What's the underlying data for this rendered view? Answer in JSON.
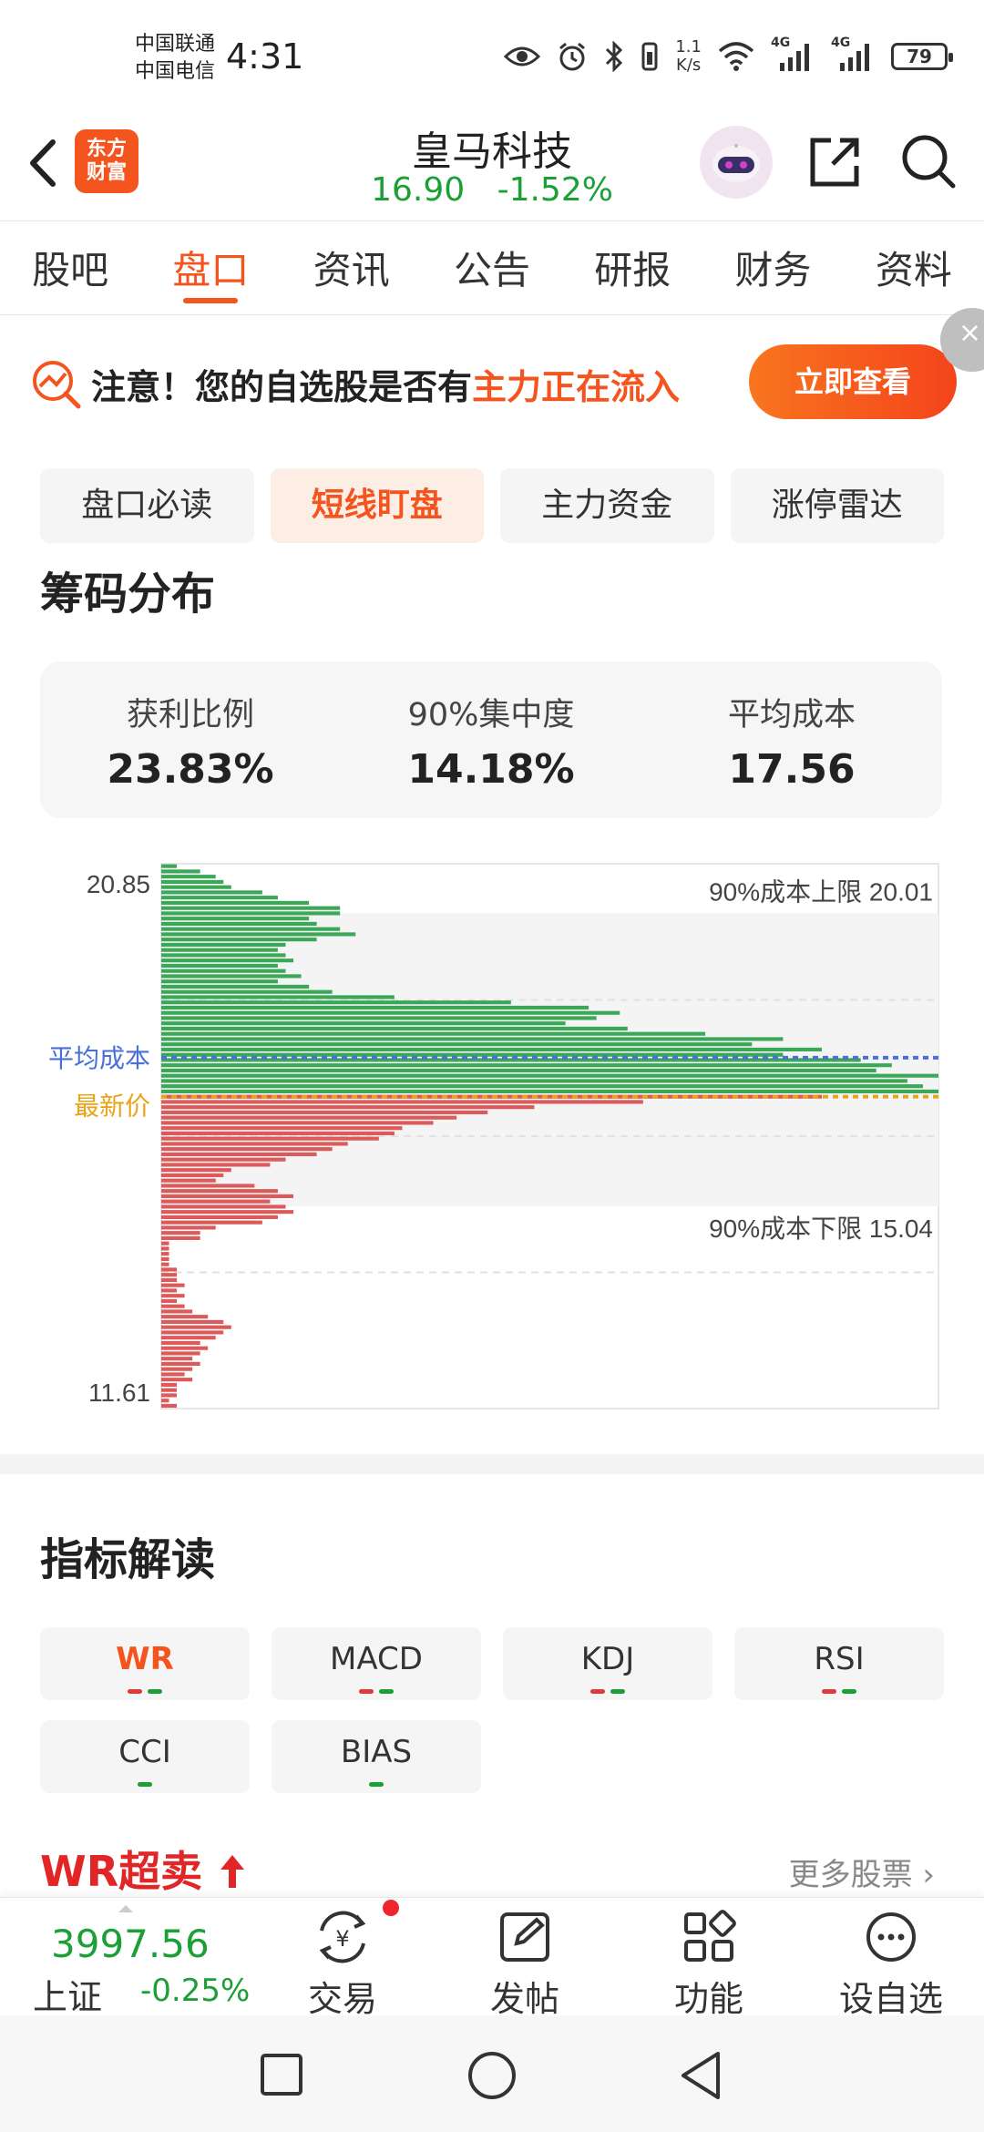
{
  "status_bar": {
    "carrier_1": "中国联通",
    "carrier_2": "中国电信",
    "time": "4:31",
    "net_speed_value": "1.1",
    "net_speed_unit": "K/s",
    "signal_1": "4G",
    "signal_2": "4G",
    "battery": "79",
    "icons": [
      "eye-icon",
      "alarm-icon",
      "bluetooth-icon",
      "vibrate-icon",
      "wifi-icon",
      "signal-icon",
      "battery-icon"
    ]
  },
  "header": {
    "logo_line1": "东方",
    "logo_line2": "财富",
    "stock_name": "皇马科技",
    "price": "16.90",
    "change": "-1.52%",
    "accent": "#f4541d",
    "down_color": "#1ba035"
  },
  "tabs": [
    {
      "label": "股吧",
      "active": false
    },
    {
      "label": "盘口",
      "active": true
    },
    {
      "label": "资讯",
      "active": false
    },
    {
      "label": "公告",
      "active": false
    },
    {
      "label": "研报",
      "active": false
    },
    {
      "label": "财务",
      "active": false
    },
    {
      "label": "资料",
      "active": false
    }
  ],
  "alert": {
    "text_prefix": "注意！您的自选股是否有",
    "text_highlight": "主力正在流入",
    "button": "立即查看",
    "close": "×"
  },
  "segments": [
    {
      "label": "盘口必读",
      "active": false
    },
    {
      "label": "短线盯盘",
      "active": true
    },
    {
      "label": "主力资金",
      "active": false
    },
    {
      "label": "涨停雷达",
      "active": false
    }
  ],
  "chip": {
    "title": "筹码分布",
    "stats": [
      {
        "label": "获利比例",
        "value": "23.83%"
      },
      {
        "label": "90%集中度",
        "value": "14.18%"
      },
      {
        "label": "平均成本",
        "value": "17.56"
      }
    ]
  },
  "chart_data": {
    "type": "bar",
    "orientation": "horizontal",
    "y_top_label": "20.85",
    "y_bottom_label": "11.61",
    "ylim": [
      11.61,
      20.85
    ],
    "upper_label": "90%成本上限 20.01",
    "lower_label": "90%成本下限 15.04",
    "upper_value": 20.01,
    "lower_value": 15.04,
    "avg_label": "平均成本",
    "avg_value": 17.56,
    "latest_label": "最新价",
    "latest_value": 16.9,
    "profit_color": "#3aa856",
    "loss_color": "#dc5a5a",
    "avg_color": "#4a6fd8",
    "latest_color": "#e8a317",
    "bars_top_to_bottom": [
      0.02,
      0.05,
      0.07,
      0.08,
      0.09,
      0.13,
      0.15,
      0.19,
      0.23,
      0.23,
      0.19,
      0.2,
      0.23,
      0.25,
      0.2,
      0.16,
      0.15,
      0.16,
      0.17,
      0.15,
      0.16,
      0.18,
      0.15,
      0.19,
      0.22,
      0.3,
      0.45,
      0.55,
      0.59,
      0.56,
      0.52,
      0.6,
      0.7,
      0.8,
      0.76,
      0.85,
      0.8,
      0.9,
      0.94,
      0.92,
      1.0,
      0.96,
      0.98,
      1.0,
      0.85,
      0.62,
      0.48,
      0.42,
      0.38,
      0.35,
      0.31,
      0.3,
      0.28,
      0.24,
      0.22,
      0.2,
      0.16,
      0.14,
      0.09,
      0.08,
      0.07,
      0.12,
      0.15,
      0.17,
      0.14,
      0.16,
      0.17,
      0.15,
      0.13,
      0.07,
      0.05,
      0.05,
      0.01,
      0.01,
      0.01,
      0.01,
      0.01,
      0.02,
      0.02,
      0.02,
      0.03,
      0.02,
      0.03,
      0.02,
      0.03,
      0.04,
      0.06,
      0.08,
      0.09,
      0.08,
      0.07,
      0.05,
      0.06,
      0.05,
      0.04,
      0.05,
      0.04,
      0.03,
      0.04,
      0.02,
      0.02,
      0.02,
      0.01,
      0.02
    ]
  },
  "indicator": {
    "title": "指标解读",
    "items": [
      {
        "label": "WR",
        "active": true,
        "marks": [
          "r",
          "g"
        ]
      },
      {
        "label": "MACD",
        "active": false,
        "marks": [
          "r",
          "g"
        ]
      },
      {
        "label": "KDJ",
        "active": false,
        "marks": [
          "r",
          "g"
        ]
      },
      {
        "label": "RSI",
        "active": false,
        "marks": [
          "r",
          "g"
        ]
      },
      {
        "label": "CCI",
        "active": false,
        "marks": [
          "g"
        ]
      },
      {
        "label": "BIAS",
        "active": false,
        "marks": [
          "g"
        ]
      }
    ],
    "wr_title": "WR超卖",
    "more": "更多股票"
  },
  "bottom_bar": {
    "index_value": "3997.56",
    "index_name": "上证",
    "index_change": "-0.25%",
    "items": [
      {
        "label": "交易",
        "icon": "trade-icon"
      },
      {
        "label": "发帖",
        "icon": "post-icon"
      },
      {
        "label": "功能",
        "icon": "apps-icon"
      },
      {
        "label": "设自选",
        "icon": "more-icon"
      }
    ]
  },
  "system_nav": [
    "recents-icon",
    "home-icon",
    "back-icon"
  ]
}
